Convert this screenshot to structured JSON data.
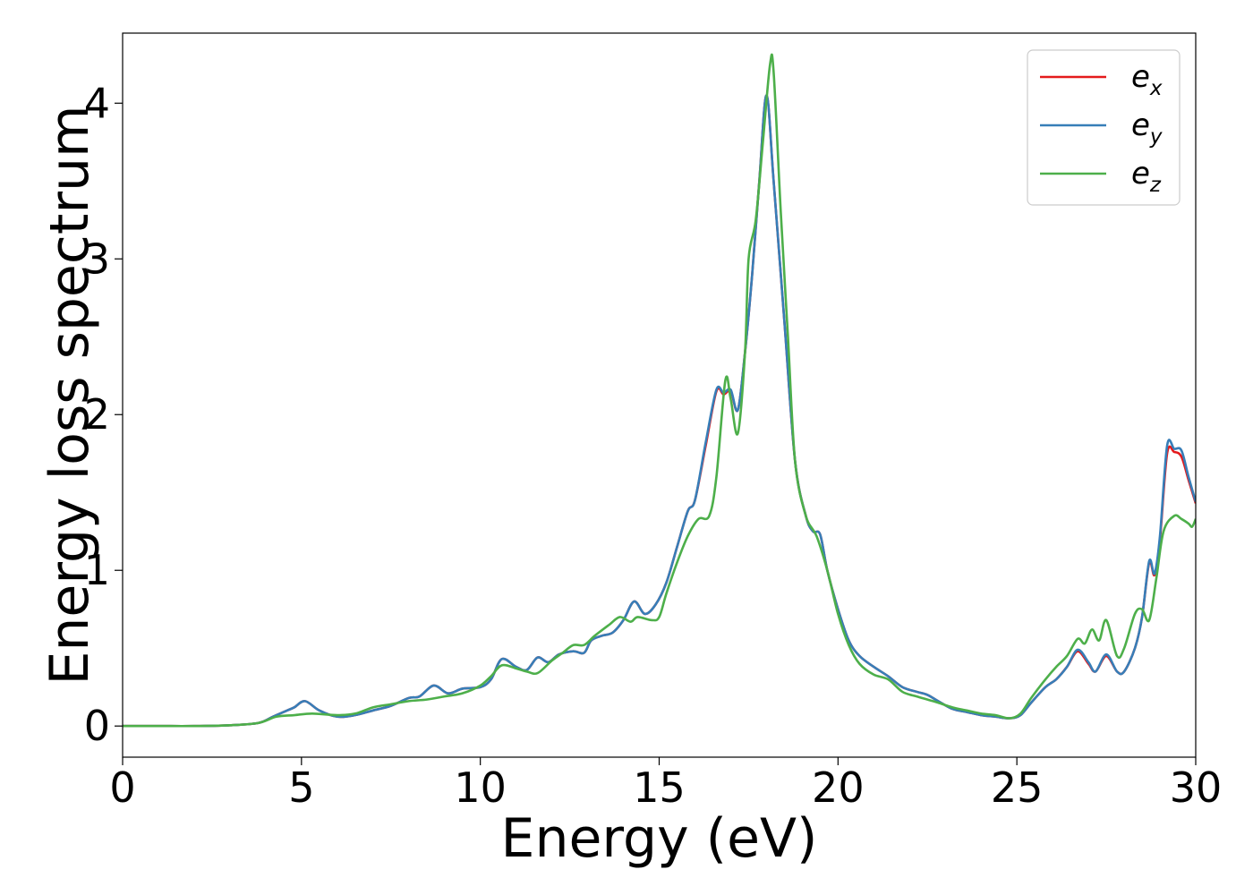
{
  "chart_data": {
    "type": "line",
    "title": "",
    "xlabel": "Energy (eV)",
    "ylabel": "Energy loss spectrum",
    "xlim": [
      0,
      30
    ],
    "ylim": [
      -0.2,
      4.45
    ],
    "xticks": [
      0,
      5,
      10,
      15,
      20,
      25,
      30
    ],
    "yticks": [
      0,
      1,
      2,
      3,
      4
    ],
    "grid": false,
    "legend_position": "top-right",
    "series": [
      {
        "name": "ex",
        "label_base": "e",
        "label_sub": "x",
        "color": "#e41a1c",
        "points": [
          [
            0,
            0
          ],
          [
            1,
            0
          ],
          [
            2,
            0
          ],
          [
            3,
            0.005
          ],
          [
            3.8,
            0.02
          ],
          [
            4.2,
            0.06
          ],
          [
            4.6,
            0.1
          ],
          [
            4.8,
            0.12
          ],
          [
            5.1,
            0.16
          ],
          [
            5.5,
            0.1
          ],
          [
            6,
            0.06
          ],
          [
            6.5,
            0.07
          ],
          [
            7,
            0.1
          ],
          [
            7.5,
            0.13
          ],
          [
            8,
            0.18
          ],
          [
            8.3,
            0.19
          ],
          [
            8.7,
            0.26
          ],
          [
            9.1,
            0.21
          ],
          [
            9.5,
            0.24
          ],
          [
            10,
            0.25
          ],
          [
            10.3,
            0.3
          ],
          [
            10.6,
            0.43
          ],
          [
            11,
            0.38
          ],
          [
            11.3,
            0.36
          ],
          [
            11.6,
            0.44
          ],
          [
            11.9,
            0.41
          ],
          [
            12.2,
            0.46
          ],
          [
            12.6,
            0.48
          ],
          [
            12.9,
            0.47
          ],
          [
            13.1,
            0.55
          ],
          [
            13.4,
            0.58
          ],
          [
            13.7,
            0.6
          ],
          [
            14,
            0.68
          ],
          [
            14.3,
            0.8
          ],
          [
            14.6,
            0.72
          ],
          [
            14.9,
            0.78
          ],
          [
            15.2,
            0.92
          ],
          [
            15.5,
            1.15
          ],
          [
            15.8,
            1.38
          ],
          [
            16,
            1.45
          ],
          [
            16.3,
            1.8
          ],
          [
            16.6,
            2.15
          ],
          [
            16.8,
            2.13
          ],
          [
            17,
            2.15
          ],
          [
            17.2,
            2.03
          ],
          [
            17.4,
            2.4
          ],
          [
            17.6,
            2.9
          ],
          [
            17.8,
            3.5
          ],
          [
            18,
            4.05
          ],
          [
            18.2,
            3.5
          ],
          [
            18.5,
            2.6
          ],
          [
            18.8,
            1.7
          ],
          [
            19.1,
            1.35
          ],
          [
            19.3,
            1.25
          ],
          [
            19.5,
            1.23
          ],
          [
            19.7,
            1.0
          ],
          [
            20,
            0.75
          ],
          [
            20.3,
            0.55
          ],
          [
            20.6,
            0.45
          ],
          [
            21,
            0.38
          ],
          [
            21.4,
            0.32
          ],
          [
            21.8,
            0.25
          ],
          [
            22.2,
            0.22
          ],
          [
            22.5,
            0.2
          ],
          [
            22.8,
            0.16
          ],
          [
            23.2,
            0.11
          ],
          [
            23.6,
            0.09
          ],
          [
            24,
            0.07
          ],
          [
            24.4,
            0.06
          ],
          [
            24.8,
            0.05
          ],
          [
            25.1,
            0.07
          ],
          [
            25.4,
            0.15
          ],
          [
            25.8,
            0.25
          ],
          [
            26.1,
            0.3
          ],
          [
            26.4,
            0.38
          ],
          [
            26.7,
            0.48
          ],
          [
            27,
            0.4
          ],
          [
            27.2,
            0.35
          ],
          [
            27.5,
            0.45
          ],
          [
            27.8,
            0.35
          ],
          [
            28,
            0.35
          ],
          [
            28.3,
            0.5
          ],
          [
            28.5,
            0.7
          ],
          [
            28.7,
            1.05
          ],
          [
            28.85,
            0.97
          ],
          [
            29,
            1.2
          ],
          [
            29.2,
            1.75
          ],
          [
            29.4,
            1.76
          ],
          [
            29.6,
            1.73
          ],
          [
            29.8,
            1.58
          ],
          [
            30,
            1.43
          ]
        ]
      },
      {
        "name": "ey",
        "label_base": "e",
        "label_sub": "y",
        "color": "#377eb8",
        "points": [
          [
            0,
            0
          ],
          [
            1,
            0
          ],
          [
            2,
            0
          ],
          [
            3,
            0.005
          ],
          [
            3.8,
            0.02
          ],
          [
            4.2,
            0.06
          ],
          [
            4.6,
            0.1
          ],
          [
            4.8,
            0.12
          ],
          [
            5.1,
            0.16
          ],
          [
            5.5,
            0.1
          ],
          [
            6,
            0.06
          ],
          [
            6.5,
            0.07
          ],
          [
            7,
            0.1
          ],
          [
            7.5,
            0.13
          ],
          [
            8,
            0.18
          ],
          [
            8.3,
            0.19
          ],
          [
            8.7,
            0.26
          ],
          [
            9.1,
            0.21
          ],
          [
            9.5,
            0.24
          ],
          [
            10,
            0.25
          ],
          [
            10.3,
            0.3
          ],
          [
            10.6,
            0.43
          ],
          [
            11,
            0.38
          ],
          [
            11.3,
            0.36
          ],
          [
            11.6,
            0.44
          ],
          [
            11.9,
            0.41
          ],
          [
            12.2,
            0.46
          ],
          [
            12.6,
            0.48
          ],
          [
            12.9,
            0.47
          ],
          [
            13.1,
            0.55
          ],
          [
            13.4,
            0.58
          ],
          [
            13.7,
            0.6
          ],
          [
            14,
            0.68
          ],
          [
            14.3,
            0.8
          ],
          [
            14.6,
            0.72
          ],
          [
            14.9,
            0.78
          ],
          [
            15.2,
            0.92
          ],
          [
            15.5,
            1.15
          ],
          [
            15.8,
            1.38
          ],
          [
            16,
            1.45
          ],
          [
            16.3,
            1.82
          ],
          [
            16.6,
            2.16
          ],
          [
            16.8,
            2.14
          ],
          [
            17,
            2.16
          ],
          [
            17.2,
            2.03
          ],
          [
            17.4,
            2.4
          ],
          [
            17.6,
            2.9
          ],
          [
            17.8,
            3.5
          ],
          [
            18,
            4.05
          ],
          [
            18.2,
            3.5
          ],
          [
            18.5,
            2.6
          ],
          [
            18.8,
            1.7
          ],
          [
            19.1,
            1.35
          ],
          [
            19.3,
            1.25
          ],
          [
            19.5,
            1.23
          ],
          [
            19.7,
            1.0
          ],
          [
            20,
            0.75
          ],
          [
            20.3,
            0.55
          ],
          [
            20.6,
            0.45
          ],
          [
            21,
            0.38
          ],
          [
            21.4,
            0.32
          ],
          [
            21.8,
            0.25
          ],
          [
            22.2,
            0.22
          ],
          [
            22.5,
            0.2
          ],
          [
            22.8,
            0.16
          ],
          [
            23.2,
            0.11
          ],
          [
            23.6,
            0.09
          ],
          [
            24,
            0.07
          ],
          [
            24.4,
            0.06
          ],
          [
            24.8,
            0.05
          ],
          [
            25.1,
            0.07
          ],
          [
            25.4,
            0.15
          ],
          [
            25.8,
            0.25
          ],
          [
            26.1,
            0.3
          ],
          [
            26.4,
            0.38
          ],
          [
            26.7,
            0.49
          ],
          [
            27,
            0.41
          ],
          [
            27.2,
            0.35
          ],
          [
            27.5,
            0.46
          ],
          [
            27.8,
            0.35
          ],
          [
            28,
            0.35
          ],
          [
            28.3,
            0.5
          ],
          [
            28.5,
            0.7
          ],
          [
            28.7,
            1.06
          ],
          [
            28.85,
            0.98
          ],
          [
            29,
            1.22
          ],
          [
            29.2,
            1.8
          ],
          [
            29.4,
            1.78
          ],
          [
            29.6,
            1.77
          ],
          [
            29.8,
            1.6
          ],
          [
            30,
            1.44
          ]
        ]
      },
      {
        "name": "ez",
        "label_base": "e",
        "label_sub": "z",
        "color": "#4daf4a",
        "points": [
          [
            0,
            0
          ],
          [
            1,
            0
          ],
          [
            2,
            0
          ],
          [
            3,
            0.005
          ],
          [
            3.8,
            0.02
          ],
          [
            4.3,
            0.06
          ],
          [
            4.8,
            0.07
          ],
          [
            5.3,
            0.08
          ],
          [
            6,
            0.07
          ],
          [
            6.5,
            0.08
          ],
          [
            7,
            0.12
          ],
          [
            7.5,
            0.14
          ],
          [
            8,
            0.16
          ],
          [
            8.5,
            0.17
          ],
          [
            9,
            0.19
          ],
          [
            9.5,
            0.21
          ],
          [
            10,
            0.26
          ],
          [
            10.3,
            0.32
          ],
          [
            10.6,
            0.39
          ],
          [
            11,
            0.37
          ],
          [
            11.3,
            0.35
          ],
          [
            11.6,
            0.34
          ],
          [
            12,
            0.42
          ],
          [
            12.3,
            0.47
          ],
          [
            12.6,
            0.52
          ],
          [
            12.9,
            0.52
          ],
          [
            13.2,
            0.58
          ],
          [
            13.6,
            0.65
          ],
          [
            13.9,
            0.7
          ],
          [
            14.2,
            0.67
          ],
          [
            14.4,
            0.7
          ],
          [
            14.8,
            0.68
          ],
          [
            15,
            0.7
          ],
          [
            15.2,
            0.85
          ],
          [
            15.5,
            1.05
          ],
          [
            15.8,
            1.22
          ],
          [
            16.1,
            1.33
          ],
          [
            16.4,
            1.35
          ],
          [
            16.6,
            1.6
          ],
          [
            16.85,
            2.22
          ],
          [
            17,
            2.1
          ],
          [
            17.2,
            1.88
          ],
          [
            17.4,
            2.4
          ],
          [
            17.5,
            3.0
          ],
          [
            17.7,
            3.25
          ],
          [
            17.9,
            3.75
          ],
          [
            18.1,
            4.25
          ],
          [
            18.2,
            4.2
          ],
          [
            18.4,
            3.3
          ],
          [
            18.6,
            2.5
          ],
          [
            18.8,
            1.7
          ],
          [
            19.1,
            1.35
          ],
          [
            19.4,
            1.22
          ],
          [
            19.7,
            1.0
          ],
          [
            20,
            0.72
          ],
          [
            20.3,
            0.52
          ],
          [
            20.6,
            0.4
          ],
          [
            21,
            0.33
          ],
          [
            21.4,
            0.3
          ],
          [
            21.8,
            0.22
          ],
          [
            22.2,
            0.19
          ],
          [
            22.5,
            0.17
          ],
          [
            22.8,
            0.15
          ],
          [
            23.2,
            0.12
          ],
          [
            23.6,
            0.1
          ],
          [
            24,
            0.08
          ],
          [
            24.4,
            0.07
          ],
          [
            24.8,
            0.05
          ],
          [
            25.1,
            0.08
          ],
          [
            25.4,
            0.18
          ],
          [
            25.8,
            0.3
          ],
          [
            26.1,
            0.38
          ],
          [
            26.4,
            0.45
          ],
          [
            26.7,
            0.56
          ],
          [
            26.9,
            0.53
          ],
          [
            27.1,
            0.62
          ],
          [
            27.3,
            0.55
          ],
          [
            27.5,
            0.68
          ],
          [
            27.8,
            0.45
          ],
          [
            28,
            0.5
          ],
          [
            28.3,
            0.72
          ],
          [
            28.5,
            0.75
          ],
          [
            28.7,
            0.68
          ],
          [
            28.9,
            0.95
          ],
          [
            29.1,
            1.25
          ],
          [
            29.4,
            1.35
          ],
          [
            29.6,
            1.33
          ],
          [
            29.8,
            1.3
          ],
          [
            29.9,
            1.28
          ],
          [
            30,
            1.33
          ]
        ]
      }
    ]
  }
}
